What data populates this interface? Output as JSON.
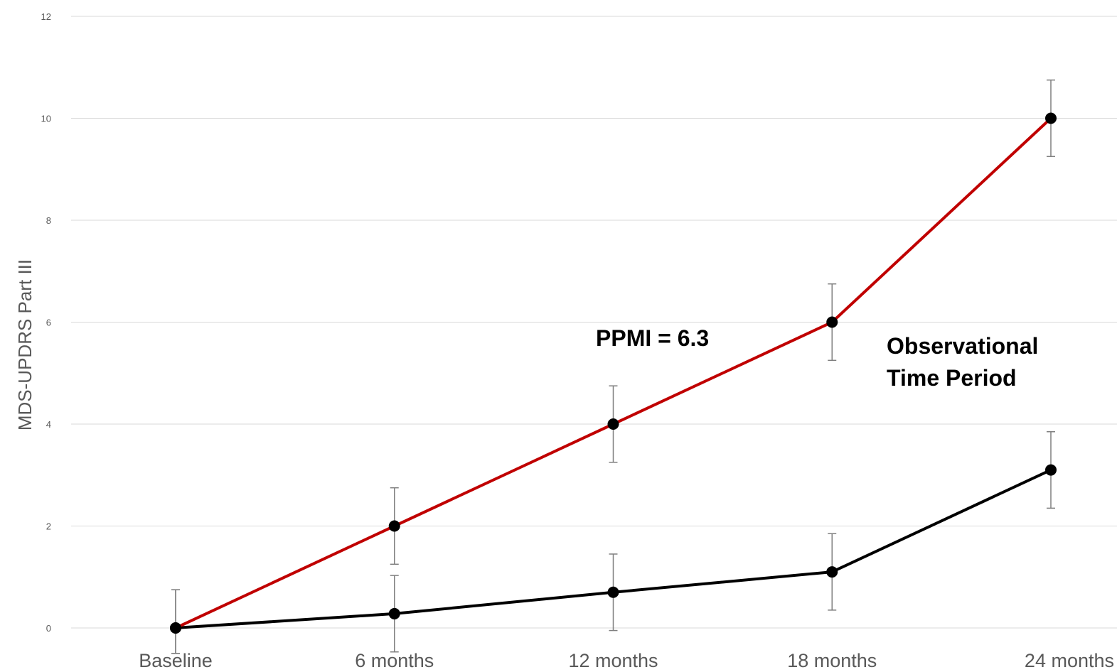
{
  "chart_data": {
    "type": "line",
    "ylabel": "MDS-UPDRS Part III",
    "ylim": [
      0,
      12
    ],
    "yticks": [
      0,
      2,
      4,
      6,
      8,
      10,
      12
    ],
    "grid": true,
    "categories": [
      "Baseline",
      "6 months",
      "12 months",
      "18 months",
      "24 months"
    ],
    "series": [
      {
        "color": "#c00000",
        "values": [
          0,
          2,
          4,
          6,
          10
        ],
        "error": [
          0.75,
          0.75,
          0.75,
          0.75,
          0.75
        ]
      },
      {
        "color": "#000000",
        "values": [
          0,
          0.28,
          0.7,
          1.1,
          3.1
        ],
        "error": [
          0.75,
          0.75,
          0.75,
          0.75,
          0.75
        ]
      }
    ],
    "annotations": [
      {
        "lines": [
          "PPMI = 6.3"
        ]
      },
      {
        "lines": [
          "Observational",
          "Time Period"
        ]
      }
    ]
  }
}
